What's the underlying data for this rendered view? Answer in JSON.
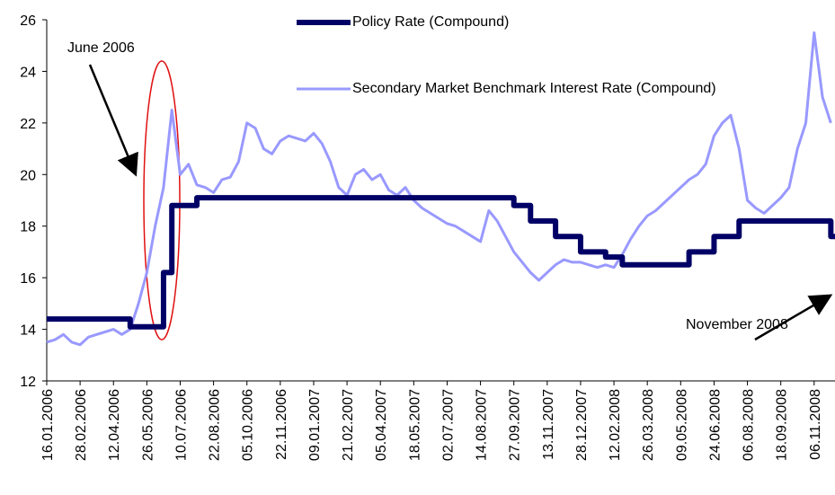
{
  "chart_data": {
    "type": "line",
    "categories": [
      "16.01.2006",
      null,
      null,
      null,
      "28.02.2006",
      null,
      null,
      null,
      "12.04.2006",
      null,
      null,
      null,
      "26.05.2006",
      null,
      null,
      null,
      "10.07.2006",
      null,
      null,
      null,
      "22.08.2006",
      null,
      null,
      null,
      "05.10.2006",
      null,
      null,
      null,
      "22.11.2006",
      null,
      null,
      null,
      "09.01.2007",
      null,
      null,
      null,
      "21.02.2007",
      null,
      null,
      null,
      "05.04.2007",
      null,
      null,
      null,
      "18.05.2007",
      null,
      null,
      null,
      "02.07.2007",
      null,
      null,
      null,
      "14.08.2007",
      null,
      null,
      null,
      "27.09.2007",
      null,
      null,
      null,
      "13.11.2007",
      null,
      null,
      null,
      "28.12.2007",
      null,
      null,
      null,
      "12.02.2008",
      null,
      null,
      null,
      "26.03.2008",
      null,
      null,
      null,
      "09.05.2008",
      null,
      null,
      null,
      "24.06.2008",
      null,
      null,
      null,
      "06.08.2008",
      null,
      null,
      null,
      "18.09.2008",
      null,
      null,
      null,
      "06.11.2008",
      null,
      null
    ],
    "series": [
      {
        "name": "Policy Rate (Compound)",
        "color": "#000066",
        "step": "post",
        "values": [
          14.4,
          14.4,
          14.4,
          14.4,
          14.4,
          14.4,
          14.4,
          14.4,
          14.4,
          14.4,
          14.1,
          14.1,
          14.1,
          14.1,
          16.2,
          18.8,
          18.8,
          18.8,
          19.1,
          19.1,
          19.1,
          19.1,
          19.1,
          19.1,
          19.1,
          19.1,
          19.1,
          19.1,
          19.1,
          19.1,
          19.1,
          19.1,
          19.1,
          19.1,
          19.1,
          19.1,
          19.1,
          19.1,
          19.1,
          19.1,
          19.1,
          19.1,
          19.1,
          19.1,
          19.1,
          19.1,
          19.1,
          19.1,
          19.1,
          19.1,
          19.1,
          19.1,
          19.1,
          19.1,
          19.1,
          19.1,
          18.8,
          18.8,
          18.2,
          18.2,
          18.2,
          17.6,
          17.6,
          17.6,
          17.0,
          17.0,
          17.0,
          16.8,
          16.8,
          16.5,
          16.5,
          16.5,
          16.5,
          16.5,
          16.5,
          16.5,
          16.5,
          17.0,
          17.0,
          17.0,
          17.6,
          17.6,
          17.6,
          18.2,
          18.2,
          18.2,
          18.2,
          18.2,
          18.2,
          18.2,
          18.2,
          18.2,
          18.2,
          18.2,
          17.6
        ]
      },
      {
        "name": "Secondary Market Benchmark Interest Rate (Compound)",
        "color": "#9999ff",
        "values": [
          13.5,
          13.6,
          13.8,
          13.5,
          13.4,
          13.7,
          13.8,
          13.9,
          14.0,
          13.8,
          14.0,
          15.0,
          16.2,
          18.0,
          19.5,
          22.5,
          20.0,
          20.4,
          19.6,
          19.5,
          19.3,
          19.8,
          19.9,
          20.5,
          22.0,
          21.8,
          21.0,
          20.8,
          21.3,
          21.5,
          21.4,
          21.3,
          21.6,
          21.2,
          20.5,
          19.5,
          19.2,
          20.0,
          20.2,
          19.8,
          20.0,
          19.4,
          19.2,
          19.5,
          19.0,
          18.7,
          18.5,
          18.3,
          18.1,
          18.0,
          17.8,
          17.6,
          17.4,
          18.6,
          18.2,
          17.6,
          17.0,
          16.6,
          16.2,
          15.9,
          16.2,
          16.5,
          16.7,
          16.6,
          16.6,
          16.5,
          16.4,
          16.5,
          16.4,
          16.9,
          17.5,
          18.0,
          18.4,
          18.6,
          18.9,
          19.2,
          19.5,
          19.8,
          20.0,
          20.4,
          21.5,
          22.0,
          22.3,
          21.0,
          19.0,
          18.7,
          18.5,
          18.8,
          19.1,
          19.5,
          21.0,
          22.0,
          25.5,
          23.0,
          22.0
        ]
      }
    ],
    "ylim": [
      12,
      26
    ],
    "yticks": [
      12,
      14,
      16,
      18,
      20,
      22,
      24,
      26
    ],
    "annotations": [
      "June 2006",
      "November 2008"
    ]
  }
}
